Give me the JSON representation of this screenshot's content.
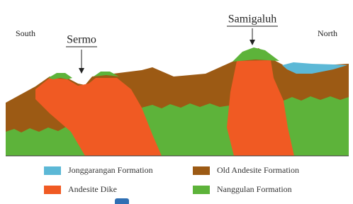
{
  "labels": {
    "south": "South",
    "north": "North",
    "sermo": "Sermo",
    "samigaluh": "Samigaluh"
  },
  "legend": [
    {
      "label": "Jonggarangan Formation",
      "color": "#5cb8d6"
    },
    {
      "label": "Andesite Dike",
      "color": "#f05a23"
    },
    {
      "label": "Old Andesite Formation",
      "color": "#9c5a14"
    },
    {
      "label": "Nanggulan Formation",
      "color": "#5db33a"
    }
  ]
}
